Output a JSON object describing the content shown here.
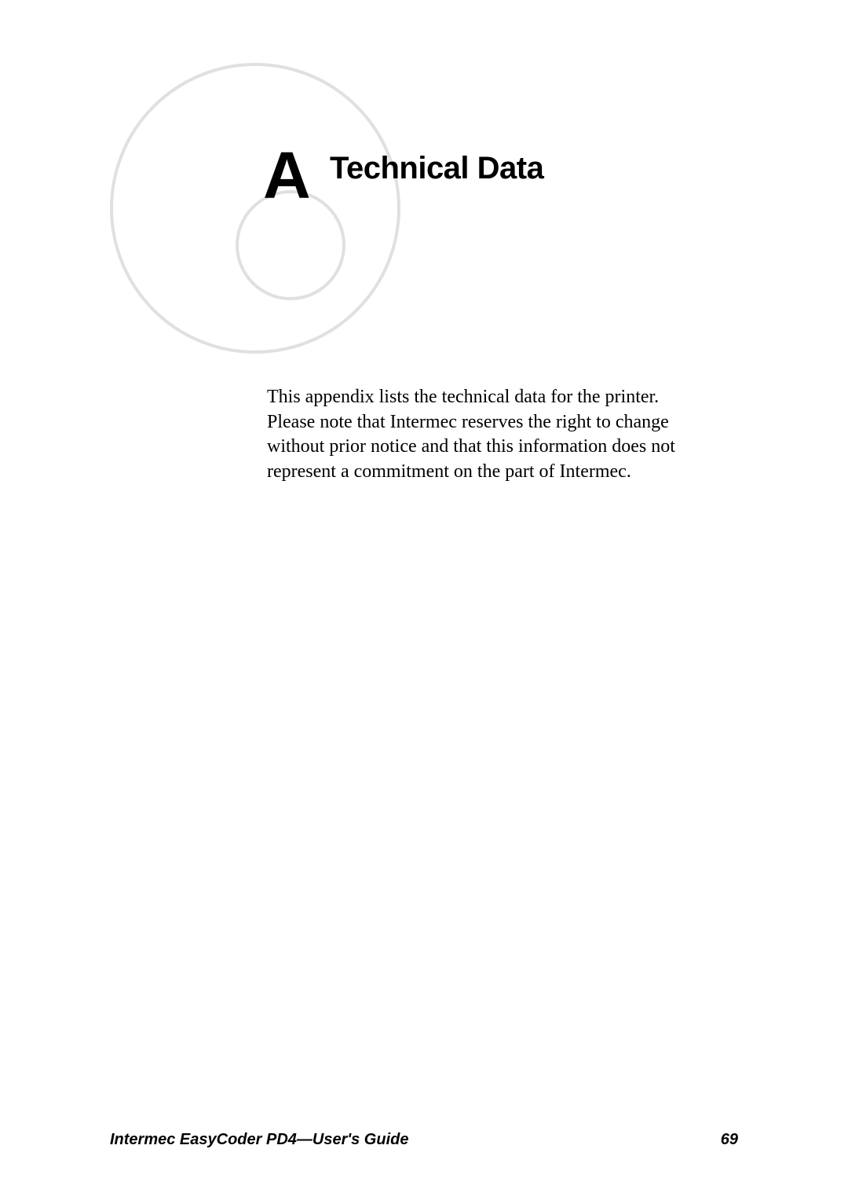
{
  "chapter": {
    "label": "A",
    "title": "Technical Data"
  },
  "body": {
    "paragraph": "This appendix lists the technical data for the printer. Please note that Intermec reserves the right to change without prior notice and that this information does not represent a commitment on the part of Intermec."
  },
  "footer": {
    "title": "Intermec EasyCoder PD4—User's Guide",
    "page": "69"
  },
  "styles": {
    "background_color": "#ffffff",
    "text_color": "#000000",
    "deco_circle_color": "#e0e0e0",
    "chapter_label_fontsize": 84,
    "chapter_title_fontsize": 40,
    "body_fontsize": 24,
    "footer_fontsize": 20
  }
}
